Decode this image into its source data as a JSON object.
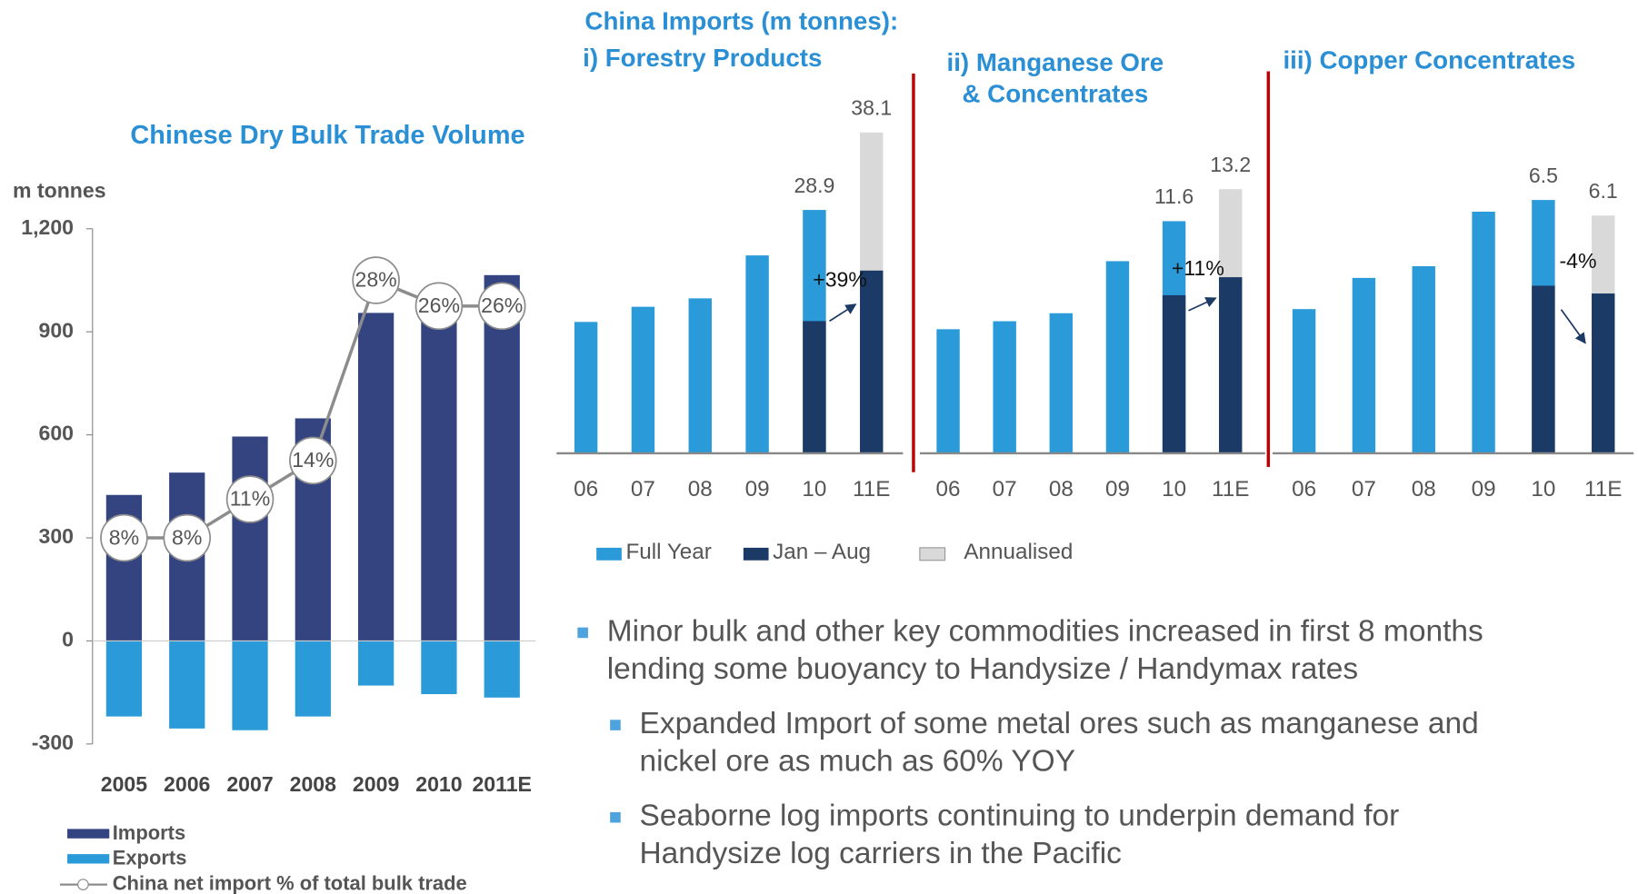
{
  "heading": "China Imports (m tonnes):",
  "bullets": [
    {
      "lines": [
        "Minor bulk and other key commodities increased in first 8 months",
        "lending some buoyancy to Handysize / Handymax rates"
      ],
      "level": 1
    },
    {
      "lines": [
        "Expanded Import of some metal ores such as manganese and",
        "nickel ore as much as 60% YOY"
      ],
      "level": 2
    },
    {
      "lines": [
        "Seaborne log imports continuing to underpin demand for",
        "Handysize log carriers in the Pacific"
      ],
      "level": 2
    }
  ],
  "chart_data": [
    {
      "type": "bar",
      "title": "Chinese Dry Bulk Trade Volume",
      "y_label": "m tonnes",
      "categories": [
        "2005",
        "2006",
        "2007",
        "2008",
        "2009",
        "2010",
        "2011E"
      ],
      "series": [
        {
          "name": "Imports",
          "color": "#344480",
          "values": [
            425,
            490,
            595,
            648,
            955,
            950,
            1065
          ]
        },
        {
          "name": "Exports",
          "color": "#2a9ad8",
          "values": [
            -220,
            -255,
            -260,
            -220,
            -130,
            -155,
            -165
          ]
        },
        {
          "name": "China net import % of total bulk trade",
          "type": "line",
          "axis": "y2",
          "color": "#8c8c8c",
          "values": [
            8,
            8,
            11,
            14,
            28,
            26,
            26
          ],
          "value_labels": [
            "8%",
            "8%",
            "11%",
            "14%",
            "28%",
            "26%",
            "26%"
          ]
        }
      ],
      "ylim": [
        -300,
        1200
      ],
      "yticks": [
        -300,
        0,
        300,
        600,
        900,
        {
          "value": 1200,
          "label": "1,200"
        }
      ],
      "y2lim": [
        -8,
        32
      ]
    },
    {
      "type": "bar",
      "title": [
        "i) Forestry Products"
      ],
      "annotation": "+39%",
      "categories": [
        "06",
        "07",
        "08",
        "09",
        "10",
        "11E"
      ],
      "series": [
        {
          "name": "Full Year",
          "color": "#2a9ad8",
          "values": [
            15.6,
            17.4,
            18.4,
            23.5,
            28.9,
            null
          ],
          "value_labels": [
            null,
            null,
            null,
            null,
            "28.9",
            null
          ]
        },
        {
          "name": "Jan – Aug",
          "color": "#1b3a66",
          "values": [
            null,
            null,
            null,
            null,
            15.7,
            21.7
          ]
        },
        {
          "name": "Annualised",
          "color": "#d9d9d9",
          "values": [
            null,
            null,
            null,
            null,
            null,
            38.1
          ],
          "value_labels": [
            null,
            null,
            null,
            null,
            null,
            "38.1"
          ]
        }
      ],
      "ylim": [
        0,
        40
      ]
    },
    {
      "type": "bar",
      "title": [
        "ii) Manganese Ore",
        "& Concentrates"
      ],
      "annotation": "+11%",
      "categories": [
        "06",
        "07",
        "08",
        "09",
        "10",
        "11E"
      ],
      "series": [
        {
          "name": "Full Year",
          "color": "#2a9ad8",
          "values": [
            6.2,
            6.6,
            7.0,
            9.6,
            11.6,
            null
          ],
          "value_labels": [
            null,
            null,
            null,
            null,
            "11.6",
            null
          ]
        },
        {
          "name": "Jan – Aug",
          "color": "#1b3a66",
          "values": [
            null,
            null,
            null,
            null,
            7.9,
            8.8
          ]
        },
        {
          "name": "Annualised",
          "color": "#d9d9d9",
          "values": [
            null,
            null,
            null,
            null,
            null,
            13.2
          ],
          "value_labels": [
            null,
            null,
            null,
            null,
            null,
            "13.2"
          ]
        }
      ],
      "ylim": [
        0,
        14
      ]
    },
    {
      "type": "bar",
      "title": [
        "iii) Copper Concentrates"
      ],
      "annotation": "-4%",
      "categories": [
        "06",
        "07",
        "08",
        "09",
        "10",
        "11E"
      ],
      "series": [
        {
          "name": "Full Year",
          "color": "#2a9ad8",
          "values": [
            3.7,
            4.5,
            4.8,
            6.2,
            6.5,
            null
          ],
          "value_labels": [
            null,
            null,
            null,
            null,
            "6.5",
            null
          ]
        },
        {
          "name": "Jan – Aug",
          "color": "#1b3a66",
          "values": [
            null,
            null,
            null,
            null,
            4.3,
            4.1
          ]
        },
        {
          "name": "Annualised",
          "color": "#d9d9d9",
          "values": [
            null,
            null,
            null,
            null,
            null,
            6.1
          ],
          "value_labels": [
            null,
            null,
            null,
            null,
            null,
            "6.1"
          ]
        }
      ],
      "ylim": [
        0,
        7
      ]
    }
  ]
}
